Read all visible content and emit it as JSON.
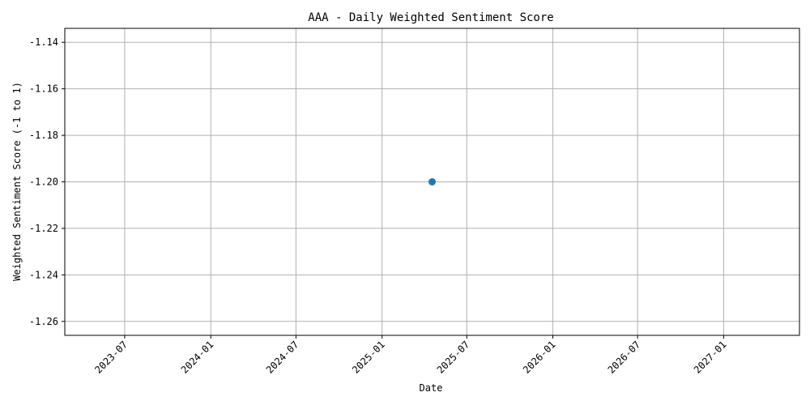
{
  "chart_data": {
    "type": "scatter",
    "title": "AAA - Daily Weighted Sentiment Score",
    "xlabel": "Date",
    "ylabel": "Weighted Sentiment Score (-1 to 1)",
    "x_ticks": [
      "2023-07",
      "2024-01",
      "2024-07",
      "2025-01",
      "2025-07",
      "2026-01",
      "2026-07",
      "2027-01"
    ],
    "y_ticks": [
      "-1.14",
      "-1.16",
      "-1.18",
      "-1.20",
      "-1.22",
      "-1.24",
      "-1.26"
    ],
    "xlim": [
      "2023-02-23",
      "2027-06-12"
    ],
    "ylim": [
      -1.266,
      -1.134
    ],
    "grid": true,
    "series": [
      {
        "points": [
          {
            "x": "2025-04-18",
            "y": -1.2
          }
        ]
      }
    ],
    "marker_color": "#1f77b4"
  }
}
